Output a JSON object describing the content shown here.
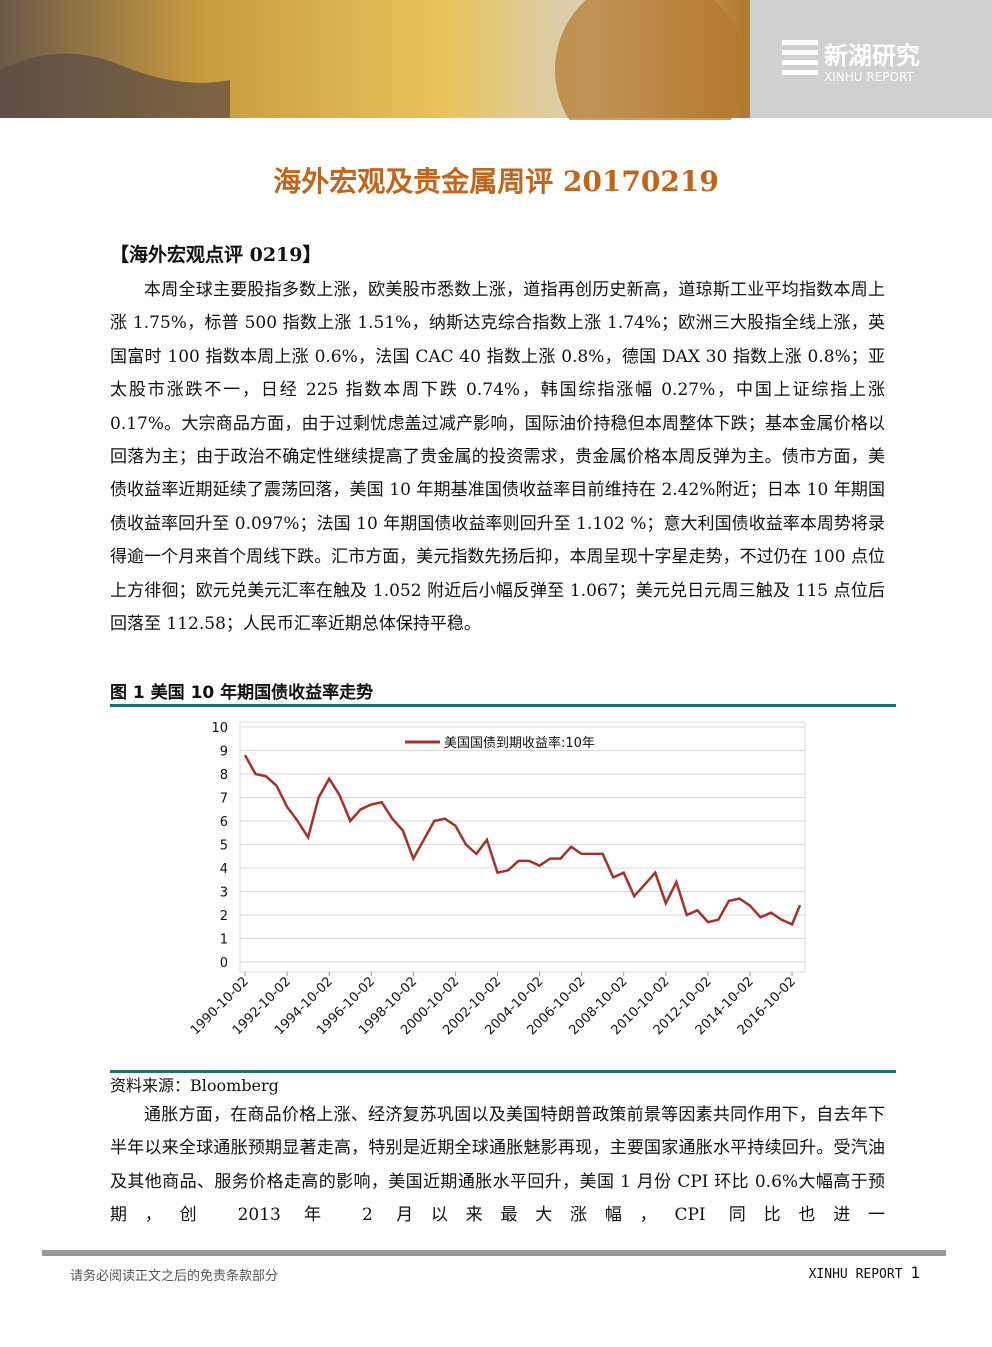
{
  "header": {
    "logo_cn": "新湖研究",
    "logo_en": "XINHU REPORT"
  },
  "title": "海外宏观及贵金属周评 20170219",
  "section_heading": "【海外宏观点评 0219】",
  "paragraphs": [
    "本周全球主要股指多数上涨，欧美股市悉数上涨，道指再创历史新高，道琼斯工业平均指数本周上涨 1.75%，标普 500 指数上涨 1.51%，纳斯达克综合指数上涨 1.74%；欧洲三大股指全线上涨，英国富时 100 指数本周上涨 0.6%，法国 CAC 40 指数上涨 0.8%，德国 DAX 30 指数上涨 0.8%；亚太股市涨跌不一，日经 225 指数本周下跌 0.74%，韩国综指涨幅 0.27%，中国上证综指上涨 0.17%。大宗商品方面，由于过剩忧虑盖过减产影响，国际油价持稳但本周整体下跌；基本金属价格以回落为主；由于政治不确定性继续提高了贵金属的投资需求，贵金属价格本周反弹为主。债市方面，美债收益率近期延续了震荡回落，美国 10 年期基准国债收益率目前维持在 2.42%附近；日本 10 年期国债收益率回升至 0.097%；法国 10 年期国债收益率则回升至 1.102 %；意大利国债收益率本周势将录得逾一个月来首个周线下跌。汇市方面，美元指数先扬后抑，本周呈现十字星走势，不过仍在 100 点位上方徘徊；欧元兑美元汇率在触及 1.052 附近后小幅反弹至 1.067；美元兑日元周三触及 115 点位后回落至 112.58；人民币汇率近期总体保持平稳。",
    "通胀方面，在商品价格上涨、经济复苏巩固以及美国特朗普政策前景等因素共同作用下，自去年下半年以来全球通胀预期显著走高，特别是近期全球通胀魅影再现，主要国家通胀水平持续回升。受汽油及其他商品、服务价格走高的影响，美国近期通胀水平回升，美国 1 月份 CPI 环比 0.6%大幅高于预期，创 2013 年 2 月以来最大涨幅，CPI 同比也进一"
  ],
  "figure_caption": "图 1 美国 10 年期国债收益率走势",
  "chart_data": {
    "type": "line",
    "x": [
      "1990-10-02",
      "1991-04-02",
      "1991-10-02",
      "1992-04-02",
      "1992-10-02",
      "1993-04-02",
      "1993-10-02",
      "1994-04-02",
      "1994-10-02",
      "1995-04-02",
      "1995-10-02",
      "1996-04-02",
      "1996-10-02",
      "1997-04-02",
      "1997-10-02",
      "1998-04-02",
      "1998-10-02",
      "1999-04-02",
      "1999-10-02",
      "2000-04-02",
      "2000-10-02",
      "2001-04-02",
      "2001-10-02",
      "2002-04-02",
      "2002-10-02",
      "2003-04-02",
      "2003-10-02",
      "2004-04-02",
      "2004-10-02",
      "2005-04-02",
      "2005-10-02",
      "2006-04-02",
      "2006-10-02",
      "2007-04-02",
      "2007-10-02",
      "2008-04-02",
      "2008-10-02",
      "2009-04-02",
      "2009-10-02",
      "2010-04-02",
      "2010-10-02",
      "2011-04-02",
      "2011-10-02",
      "2012-04-02",
      "2012-10-02",
      "2013-04-02",
      "2013-10-02",
      "2014-04-02",
      "2014-10-02",
      "2015-04-02",
      "2015-10-02",
      "2016-04-02",
      "2016-10-02",
      "2017-02-17"
    ],
    "series": [
      {
        "name": "美国国债到期收益率:10年",
        "color": "#a3322c",
        "values": [
          8.8,
          8.0,
          7.9,
          7.5,
          6.6,
          6.0,
          5.3,
          7.0,
          7.8,
          7.1,
          6.0,
          6.5,
          6.7,
          6.8,
          6.1,
          5.6,
          4.4,
          5.2,
          6.0,
          6.1,
          5.8,
          5.0,
          4.6,
          5.2,
          3.8,
          3.9,
          4.3,
          4.3,
          4.1,
          4.4,
          4.4,
          4.9,
          4.6,
          4.6,
          4.6,
          3.6,
          3.8,
          2.8,
          3.3,
          3.8,
          2.5,
          3.4,
          2.0,
          2.2,
          1.7,
          1.8,
          2.6,
          2.7,
          2.4,
          1.9,
          2.1,
          1.8,
          1.6,
          2.42
        ]
      }
    ],
    "xlim": [
      "1990-10-02",
      "2017-02-17"
    ],
    "xticks": [
      "1990-10-02",
      "1992-10-02",
      "1994-10-02",
      "1996-10-02",
      "1998-10-02",
      "2000-10-02",
      "2002-10-02",
      "2004-10-02",
      "2006-10-02",
      "2008-10-02",
      "2010-10-02",
      "2012-10-02",
      "2014-10-02",
      "2016-10-02"
    ],
    "ylim": [
      0,
      10
    ],
    "yticks": [
      0,
      1,
      2,
      3,
      4,
      5,
      6,
      7,
      8,
      9,
      10
    ],
    "grid": true,
    "legend": "top"
  },
  "source": "资料来源：Bloomberg",
  "footer": {
    "disclaimer": "请务必阅读正文之后的免责条款部分",
    "brand": "XINHU REPORT",
    "page_number": 1
  }
}
